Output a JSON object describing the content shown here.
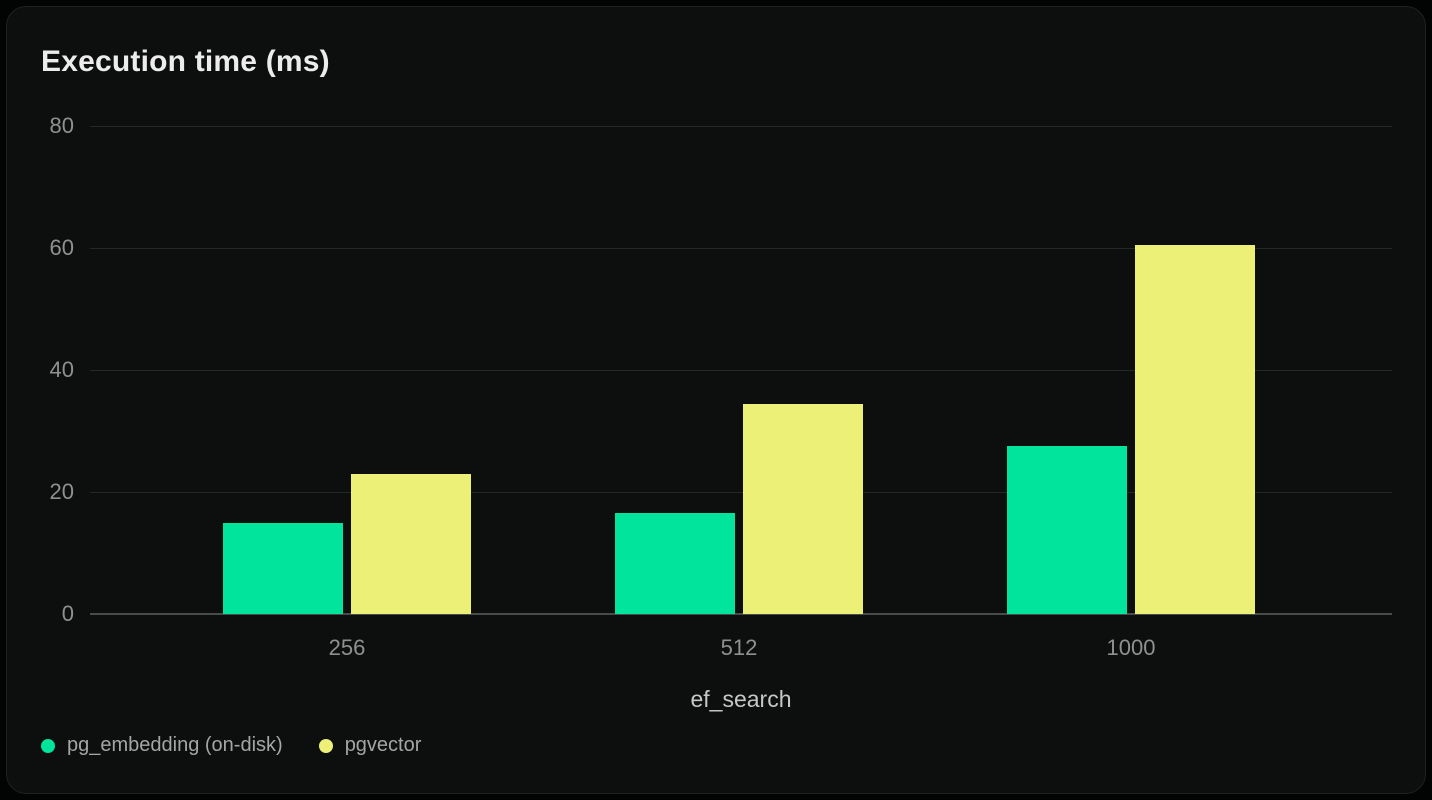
{
  "page": {
    "background_color": "#020303",
    "card_background_color": "#0d0f0e"
  },
  "chart_data": {
    "type": "bar",
    "title": "Execution time (ms)",
    "xlabel": "ef_search",
    "ylabel": "",
    "categories": [
      "256",
      "512",
      "1000"
    ],
    "series": [
      {
        "name": "pg_embedding (on-disk)",
        "color": "#00e59b",
        "values": [
          15,
          16.5,
          27.5
        ]
      },
      {
        "name": "pgvector",
        "color": "#edf076",
        "values": [
          23,
          34.5,
          60.5
        ]
      }
    ],
    "ylim": [
      0,
      80
    ],
    "yticks": [
      0,
      20,
      40,
      60,
      80
    ],
    "grid": true,
    "gridline_color": "#242827",
    "baseline_color": "#474b49",
    "tick_label_color": "#8e9190",
    "axis_label_color": "#c6c8c7",
    "legend_position": "bottom-left"
  }
}
